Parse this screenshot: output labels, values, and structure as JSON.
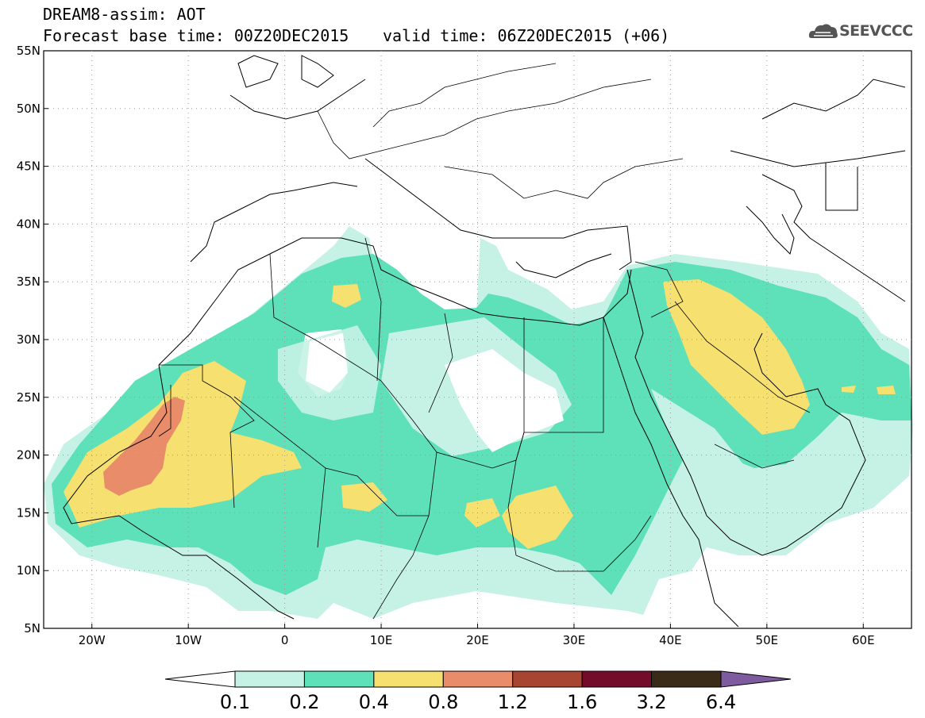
{
  "header": {
    "title": "DREAM8-assim: AOT",
    "base_time": "Forecast base time: 00Z20DEC2015",
    "valid_time": "valid time: 06Z20DEC2015 (+06)",
    "logo_text": "SEEVCCC"
  },
  "map": {
    "lon_range": [
      -25,
      65
    ],
    "lat_range": [
      5,
      55
    ],
    "lon_ticks": [
      "20W",
      "10W",
      "0",
      "10E",
      "20E",
      "30E",
      "40E",
      "50E",
      "60E"
    ],
    "lat_ticks": [
      "55N",
      "50N",
      "45N",
      "40N",
      "35N",
      "30N",
      "25N",
      "20N",
      "15N",
      "10N",
      "5N"
    ],
    "grid": "dotted"
  },
  "colorbar": {
    "labels": [
      "0.1",
      "0.2",
      "0.4",
      "0.8",
      "1.2",
      "1.6",
      "3.2",
      "6.4"
    ],
    "colors": [
      "#ffffff",
      "#c6f2e6",
      "#5ee0b8",
      "#f5e070",
      "#e88c6a",
      "#a84432",
      "#730c2a",
      "#3a2a18",
      "#7e5a9e"
    ]
  }
}
